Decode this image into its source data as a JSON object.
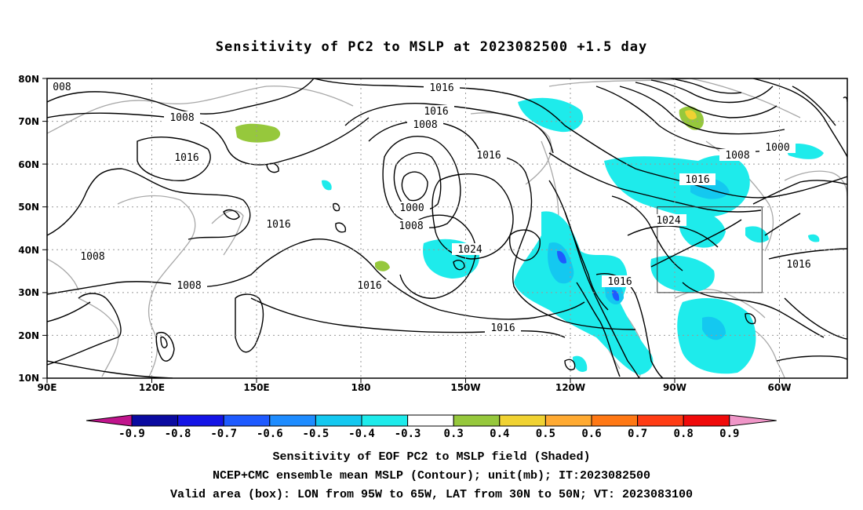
{
  "title": "Sensitivity of PC2 to MSLP at 2023082500 +1.5 day",
  "lat_labels": [
    "80N",
    "70N",
    "60N",
    "50N",
    "40N",
    "30N",
    "20N",
    "10N"
  ],
  "lon_labels": [
    "90E",
    "120E",
    "150E",
    "180",
    "150W",
    "120W",
    "90W",
    "60W"
  ],
  "contour_labels": {
    "c1": "1016",
    "c2": "1016",
    "c3": "1008",
    "c4": "1016",
    "c5": "1000",
    "c6": "1008",
    "c7": "1016",
    "c8": "1024",
    "c9": "1016",
    "c10": "1016",
    "c11": "1008",
    "c12": "1016",
    "c13": "1008",
    "c14": "1016",
    "c15": "1024",
    "c16": "1016",
    "c17": "1000",
    "c18": "1008",
    "c19": "1008",
    "c20": "008"
  },
  "colorbar": {
    "labels": [
      "-0.9",
      "-0.8",
      "-0.7",
      "-0.6",
      "-0.5",
      "-0.4",
      "-0.3",
      "0.3",
      "0.4",
      "0.5",
      "0.6",
      "0.7",
      "0.8",
      "0.9"
    ],
    "colors": [
      "#0a0aa0",
      "#1414e6",
      "#1e5aff",
      "#1e8cff",
      "#14c8f0",
      "#1eebeb",
      "#ffffff",
      "#96c83c",
      "#f0d232",
      "#ffaa32",
      "#ff7814",
      "#ff3c14",
      "#f00a0a"
    ],
    "left_arrow_color": "#c0148c",
    "right_arrow_color": "#f096c8"
  },
  "captions": {
    "line1": "Sensitivity of EOF PC2 to MSLP field (Shaded)",
    "line2": "NCEP+CMC ensemble mean MSLP (Contour); unit(mb); IT:2023082500",
    "line3": "Valid area (box): LON from 95W to 65W, LAT from 30N to 50N; VT: 2023083100"
  },
  "valid_area": {
    "lon_range": [
      "95W",
      "65W"
    ],
    "lat_range": [
      "30N",
      "50N"
    ]
  }
}
